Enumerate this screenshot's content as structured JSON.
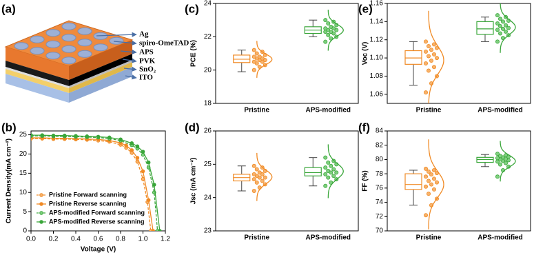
{
  "diagram": {
    "panel_label": "(a)",
    "labels": [
      "Ag",
      "spiro-OmeTAD",
      "APS",
      "PVK",
      "SnO₂",
      "ITO"
    ]
  },
  "chart_data": [
    {
      "type": "line",
      "panel_label": "(b)",
      "xlabel": "Voltage (V)",
      "ylabel": "Current Density(mA cm⁻²)",
      "xlim": [
        0,
        1.2
      ],
      "xticks": [
        {
          "value": 0,
          "label": "0.0"
        },
        0.2,
        0.4,
        0.6,
        0.8,
        {
          "value": 1,
          "label": "1.0"
        },
        1.2
      ],
      "ylim": [
        0,
        26
      ],
      "yticks": [
        0,
        5,
        10,
        15,
        20,
        25
      ],
      "legend": "lower left",
      "series": [
        {
          "name": "Pristine Forward scanning",
          "color": "#f08a24",
          "dashed": true,
          "x": [
            0,
            0.1,
            0.2,
            0.3,
            0.4,
            0.5,
            0.6,
            0.7,
            0.8,
            0.85,
            0.9,
            0.95,
            1.0,
            1.04,
            1.07
          ],
          "values": [
            24.0,
            24.0,
            23.9,
            23.9,
            23.8,
            23.7,
            23.5,
            23.2,
            22.4,
            21.6,
            20.3,
            18.0,
            13.5,
            7.5,
            0
          ]
        },
        {
          "name": "Pristine Reverse scanning",
          "color": "#f08a24",
          "dashed": false,
          "x": [
            0,
            0.1,
            0.2,
            0.3,
            0.4,
            0.5,
            0.6,
            0.7,
            0.8,
            0.85,
            0.9,
            0.95,
            1.0,
            1.05,
            1.09
          ],
          "values": [
            24.2,
            24.2,
            24.1,
            24.1,
            24.0,
            23.9,
            23.8,
            23.5,
            22.9,
            22.2,
            21.0,
            19.0,
            15.5,
            8.0,
            0
          ]
        },
        {
          "name": "APS-modified Forward scanning",
          "color": "#3aa63a",
          "dashed": true,
          "x": [
            0,
            0.1,
            0.2,
            0.3,
            0.4,
            0.5,
            0.6,
            0.7,
            0.8,
            0.9,
            0.95,
            1.0,
            1.05,
            1.1,
            1.13
          ],
          "values": [
            24.7,
            24.7,
            24.6,
            24.6,
            24.5,
            24.4,
            24.3,
            24.0,
            23.5,
            22.3,
            21.4,
            19.8,
            16.5,
            10.0,
            0
          ]
        },
        {
          "name": "APS-modified Reverse scanning",
          "color": "#3aa63a",
          "dashed": false,
          "x": [
            0,
            0.1,
            0.2,
            0.3,
            0.4,
            0.5,
            0.6,
            0.7,
            0.8,
            0.9,
            0.95,
            1.0,
            1.05,
            1.1,
            1.15
          ],
          "values": [
            24.9,
            24.9,
            24.8,
            24.8,
            24.7,
            24.6,
            24.5,
            24.3,
            23.8,
            22.8,
            22.0,
            20.6,
            17.8,
            12.0,
            0
          ]
        }
      ]
    },
    {
      "type": "box",
      "panel_label": "(c)",
      "ylabel": "PCE (%)",
      "categories": [
        "Pristine",
        "APS-modified"
      ],
      "ylim": [
        18,
        24
      ],
      "yticks": [
        18,
        20,
        22,
        24
      ],
      "boxes": [
        {
          "color": "#f08a24",
          "min": 19.9,
          "q1": 20.45,
          "median": 20.65,
          "q3": 20.9,
          "max": 21.2,
          "points": [
            20.0,
            20.2,
            20.3,
            20.4,
            20.5,
            20.5,
            20.6,
            20.6,
            20.7,
            20.7,
            20.8,
            20.8,
            20.9,
            21.0,
            21.1,
            21.2
          ]
        },
        {
          "color": "#3aa63a",
          "min": 22.0,
          "q1": 22.2,
          "median": 22.4,
          "q3": 22.6,
          "max": 23.0,
          "points": [
            21.7,
            21.9,
            22.0,
            22.1,
            22.2,
            22.3,
            22.3,
            22.4,
            22.4,
            22.5,
            22.5,
            22.6,
            22.7,
            22.8,
            22.9,
            23.0
          ]
        }
      ]
    },
    {
      "type": "box",
      "panel_label": "(d)",
      "ylabel": "Jsc (mA cm⁻²)",
      "categories": [
        "Pristine",
        "APS-modified"
      ],
      "ylim": [
        23,
        26
      ],
      "yticks": [
        23,
        24,
        25,
        26
      ],
      "boxes": [
        {
          "color": "#f08a24",
          "min": 24.2,
          "q1": 24.5,
          "median": 24.6,
          "q3": 24.7,
          "max": 24.95,
          "points": [
            24.2,
            24.3,
            24.4,
            24.45,
            24.5,
            24.55,
            24.6,
            24.6,
            24.65,
            24.7,
            24.7,
            24.75,
            24.8,
            24.85,
            24.9,
            24.95
          ]
        },
        {
          "color": "#3aa63a",
          "min": 24.35,
          "q1": 24.65,
          "median": 24.75,
          "q3": 24.9,
          "max": 25.2,
          "points": [
            24.35,
            24.45,
            24.55,
            24.6,
            24.65,
            24.7,
            24.75,
            24.75,
            24.8,
            24.85,
            24.9,
            24.95,
            25.0,
            25.05,
            25.1,
            25.2
          ]
        }
      ]
    },
    {
      "type": "box",
      "panel_label": "(e)",
      "ylabel": "Voc (V)",
      "categories": [
        "Pristine",
        "APS-modified"
      ],
      "ylim": [
        1.05,
        1.16
      ],
      "yticks": [
        1.06,
        1.08,
        {
          "value": 1.1,
          "label": "1.10"
        },
        1.12,
        1.14,
        1.16
      ],
      "boxes": [
        {
          "color": "#f08a24",
          "min": 1.07,
          "q1": 1.093,
          "median": 1.1,
          "q3": 1.108,
          "max": 1.118,
          "points": [
            1.062,
            1.072,
            1.08,
            1.086,
            1.09,
            1.094,
            1.097,
            1.1,
            1.102,
            1.104,
            1.107,
            1.109,
            1.111,
            1.113,
            1.115,
            1.118
          ]
        },
        {
          "color": "#3aa63a",
          "min": 1.118,
          "q1": 1.126,
          "median": 1.132,
          "q3": 1.14,
          "max": 1.145,
          "points": [
            1.118,
            1.122,
            1.125,
            1.127,
            1.129,
            1.131,
            1.132,
            1.133,
            1.135,
            1.136,
            1.138,
            1.14,
            1.141,
            1.143,
            1.145,
            1.147
          ]
        }
      ]
    },
    {
      "type": "box",
      "panel_label": "(f)",
      "ylabel": "FF (%)",
      "categories": [
        "Pristine",
        "APS-modified"
      ],
      "ylim": [
        70,
        84
      ],
      "yticks": [
        70,
        72,
        74,
        76,
        78,
        80,
        82,
        84
      ],
      "boxes": [
        {
          "color": "#f08a24",
          "min": 73.6,
          "q1": 75.8,
          "median": 76.5,
          "q3": 78.0,
          "max": 78.5,
          "points": [
            72.2,
            73.6,
            74.5,
            75.2,
            75.8,
            76.2,
            76.5,
            76.8,
            77.0,
            77.3,
            77.6,
            77.9,
            78.1,
            78.3,
            78.5,
            78.7
          ]
        },
        {
          "color": "#3aa63a",
          "min": 79.0,
          "q1": 79.6,
          "median": 80.0,
          "q3": 80.3,
          "max": 80.7,
          "points": [
            77.6,
            78.5,
            79.0,
            79.3,
            79.5,
            79.7,
            79.8,
            79.9,
            80.0,
            80.1,
            80.2,
            80.3,
            80.4,
            80.5,
            80.6,
            80.8
          ]
        }
      ]
    }
  ]
}
